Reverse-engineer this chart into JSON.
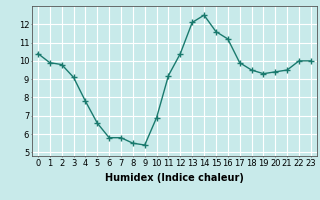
{
  "x": [
    0,
    1,
    2,
    3,
    4,
    5,
    6,
    7,
    8,
    9,
    10,
    11,
    12,
    13,
    14,
    15,
    16,
    17,
    18,
    19,
    20,
    21,
    22,
    23
  ],
  "y": [
    10.4,
    9.9,
    9.8,
    9.1,
    7.8,
    6.6,
    5.8,
    5.8,
    5.5,
    5.4,
    6.9,
    9.2,
    10.4,
    12.1,
    12.5,
    11.6,
    11.2,
    9.9,
    9.5,
    9.3,
    9.4,
    9.5,
    10.0,
    10.0
  ],
  "line_color": "#1a7a6e",
  "marker": "+",
  "marker_color": "#1a7a6e",
  "bg_color": "#c8eaea",
  "grid_color": "#ffffff",
  "grid_minor_color": "#ddf5f5",
  "xlabel": "Humidex (Indice chaleur)",
  "ylim": [
    4.8,
    13.0
  ],
  "xlim": [
    -0.5,
    23.5
  ],
  "yticks": [
    5,
    6,
    7,
    8,
    9,
    10,
    11,
    12
  ],
  "xticks": [
    0,
    1,
    2,
    3,
    4,
    5,
    6,
    7,
    8,
    9,
    10,
    11,
    12,
    13,
    14,
    15,
    16,
    17,
    18,
    19,
    20,
    21,
    22,
    23
  ],
  "xlabel_fontsize": 7,
  "tick_fontsize": 6,
  "line_width": 1.0,
  "marker_size": 4
}
